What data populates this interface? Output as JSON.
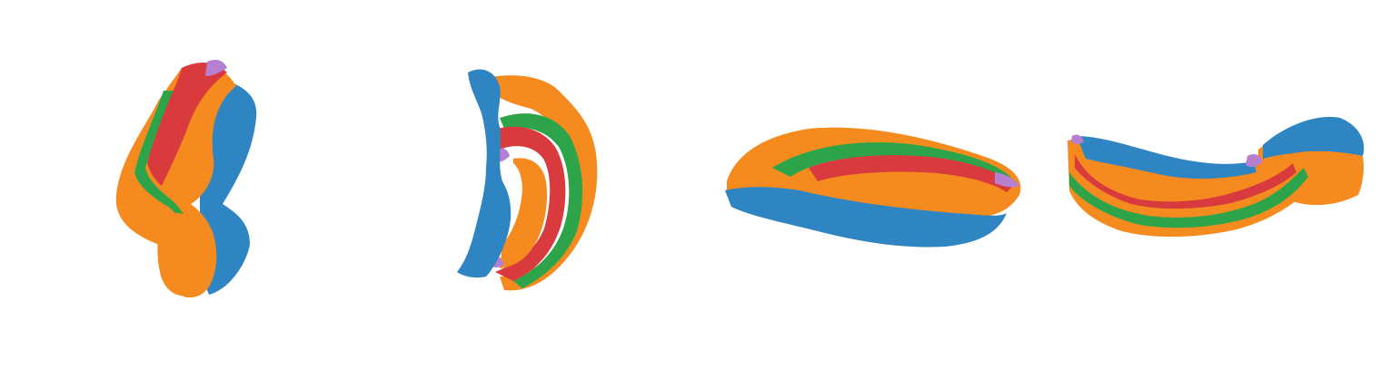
{
  "figure": {
    "views": [
      {
        "id": "view-1",
        "orientation": "oblique-vertical"
      },
      {
        "id": "view-2",
        "orientation": "c-shape"
      },
      {
        "id": "view-3",
        "orientation": "horizontal-elongated"
      },
      {
        "id": "view-4",
        "orientation": "horizontal-curved"
      }
    ],
    "colors": {
      "blue": "#2f84c2",
      "orange": "#f58b1f",
      "green": "#2ea44a",
      "red": "#d83a3e",
      "purple": "#b77fcf",
      "shadow": "#b8650f"
    }
  }
}
